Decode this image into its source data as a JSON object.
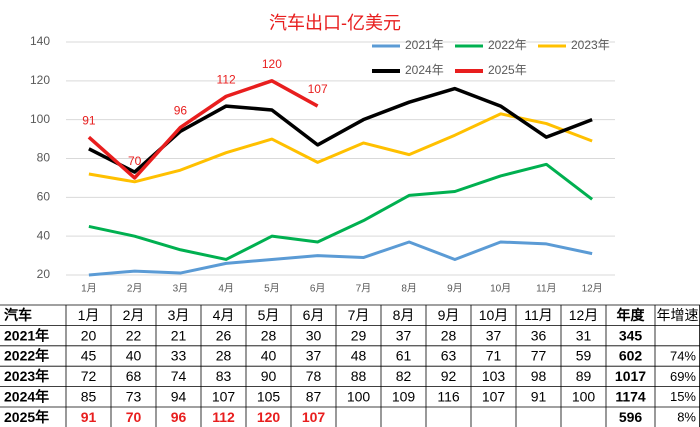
{
  "chart_data": {
    "type": "line",
    "title": "汽车出口-亿美元",
    "categories": [
      "1月",
      "2月",
      "3月",
      "4月",
      "5月",
      "6月",
      "7月",
      "8月",
      "9月",
      "10月",
      "11月",
      "12月"
    ],
    "ylim": [
      20,
      140
    ],
    "yticks": [
      20,
      40,
      60,
      80,
      100,
      120,
      140
    ],
    "grid": true,
    "legend": "top-right",
    "series": [
      {
        "name": "2021年",
        "color": "#5b9bd5",
        "values": [
          20,
          22,
          21,
          26,
          28,
          30,
          29,
          37,
          28,
          37,
          36,
          31
        ]
      },
      {
        "name": "2022年",
        "color": "#00b050",
        "values": [
          45,
          40,
          33,
          28,
          40,
          37,
          48,
          61,
          63,
          71,
          77,
          59
        ]
      },
      {
        "name": "2023年",
        "color": "#ffc000",
        "values": [
          72,
          68,
          74,
          83,
          90,
          78,
          88,
          82,
          92,
          103,
          98,
          89
        ]
      },
      {
        "name": "2024年",
        "color": "#000000",
        "values": [
          85,
          73,
          94,
          107,
          105,
          87,
          100,
          109,
          116,
          107,
          91,
          100
        ]
      },
      {
        "name": "2025年",
        "color": "#e81e1e",
        "values": [
          91,
          70,
          96,
          112,
          120,
          107,
          null,
          null,
          null,
          null,
          null,
          null
        ]
      }
    ]
  },
  "table": {
    "corner": "汽车",
    "total_header": "年度",
    "growth_header": "年增速",
    "totals": [
      345,
      602,
      1017,
      1174,
      596
    ],
    "growth": [
      null,
      "74%",
      "69%",
      "15%",
      "8%"
    ]
  }
}
